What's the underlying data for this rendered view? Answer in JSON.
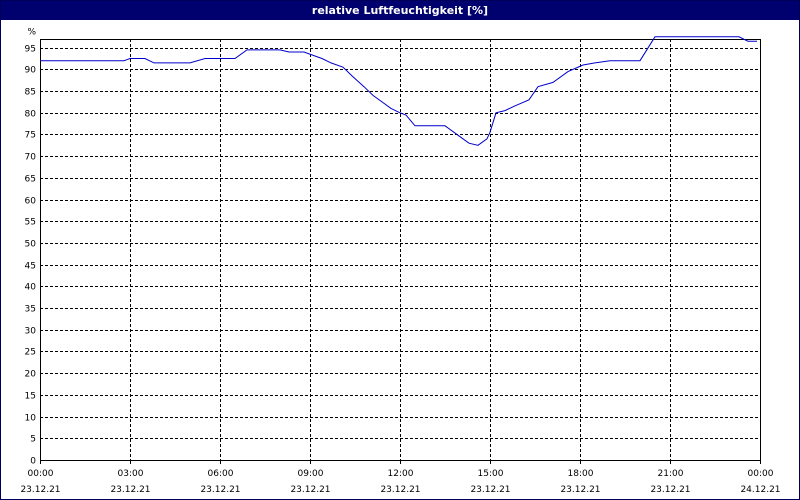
{
  "title": "relative Luftfeuchtigkeit [%]",
  "colors": {
    "title_bar": "#00006e",
    "line": "#0000cc",
    "grid": "#000000",
    "background": "#ffffff"
  },
  "chart_data": {
    "type": "line",
    "title": "relative Luftfeuchtigkeit [%]",
    "xlabel": "",
    "ylabel": "",
    "y_unit_label": "%",
    "ylim": [
      0,
      97
    ],
    "xlim_hours": [
      0,
      24
    ],
    "grid": true,
    "y_ticks": [
      0,
      5,
      10,
      15,
      20,
      25,
      30,
      35,
      40,
      45,
      50,
      55,
      60,
      65,
      70,
      75,
      80,
      85,
      90,
      95
    ],
    "x_ticks": [
      {
        "time": "00:00",
        "date": "23.12.21",
        "hour": 0
      },
      {
        "time": "03:00",
        "date": "23.12.21",
        "hour": 3
      },
      {
        "time": "06:00",
        "date": "23.12.21",
        "hour": 6
      },
      {
        "time": "09:00",
        "date": "23.12.21",
        "hour": 9
      },
      {
        "time": "12:00",
        "date": "23.12.21",
        "hour": 12
      },
      {
        "time": "15:00",
        "date": "23.12.21",
        "hour": 15
      },
      {
        "time": "18:00",
        "date": "23.12.21",
        "hour": 18
      },
      {
        "time": "21:00",
        "date": "23.12.21",
        "hour": 21
      },
      {
        "time": "00:00",
        "date": "24.12.21",
        "hour": 24
      }
    ],
    "series": [
      {
        "x": [
          0,
          2.8,
          3.0,
          3.5,
          3.8,
          5.0,
          5.5,
          6.5,
          6.9,
          7.2,
          8.0,
          8.3,
          8.8,
          9.2,
          9.4,
          9.7,
          10.1,
          10.4,
          10.8,
          11.1,
          11.4,
          11.7,
          12.0,
          12.2,
          12.5,
          13.0,
          13.5,
          14.0,
          14.3,
          14.6,
          14.9,
          15.0,
          15.2,
          15.5,
          15.8,
          16.3,
          16.6,
          17.1,
          17.6,
          18.1,
          18.5,
          19.0,
          19.6,
          20.0,
          20.5,
          21.0,
          21.5,
          22.5,
          23.3,
          23.6,
          23.9
        ],
        "y": [
          92,
          92,
          92.5,
          92.5,
          91.5,
          91.5,
          92.5,
          92.5,
          94.5,
          94.5,
          94.5,
          94,
          94,
          93,
          92.5,
          91.5,
          90.5,
          88.5,
          86,
          84,
          82.5,
          81,
          80,
          79.5,
          77,
          77,
          77,
          74.5,
          73,
          72.5,
          74,
          75.5,
          80,
          80.5,
          81.5,
          83,
          86,
          87,
          89.5,
          91,
          91.5,
          92,
          92,
          92,
          97.5,
          97.5,
          97.5,
          97.5,
          97.5,
          96.5,
          96.5
        ]
      }
    ]
  }
}
